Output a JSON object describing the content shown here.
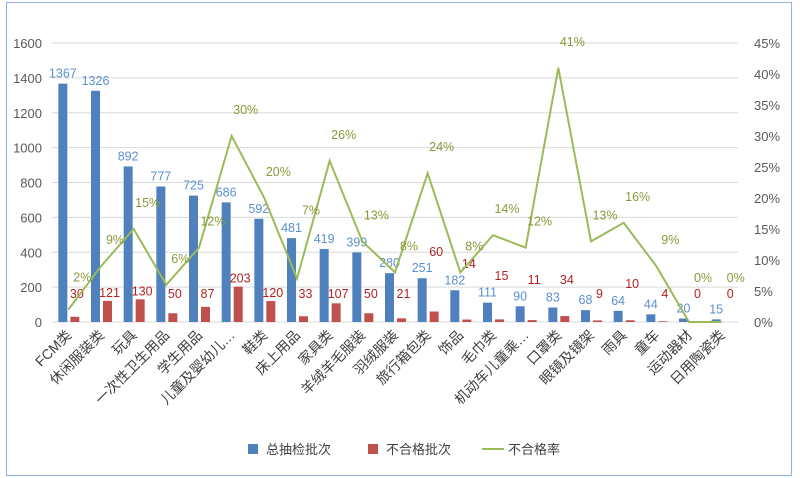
{
  "chart_data": {
    "type": "bar",
    "title": "",
    "categories": [
      "FCM类",
      "休闲服装类",
      "玩具",
      "一次性卫生用品",
      "学生用品",
      "儿童及婴幼儿…",
      "鞋类",
      "床上用品",
      "家具类",
      "羊绒羊毛服装",
      "羽绒服装",
      "旅行箱包类",
      "饰品",
      "毛巾类",
      "机动车儿童乘…",
      "口罩类",
      "眼镜及镜架",
      "雨具",
      "童车",
      "运动器材",
      "日用陶瓷类"
    ],
    "series": [
      {
        "name": "总抽检批次",
        "type": "bar",
        "axis": "left",
        "color": "#4f81bd",
        "label_color": "#5b8fd0",
        "values": [
          1367,
          1326,
          892,
          777,
          725,
          686,
          592,
          481,
          419,
          399,
          280,
          251,
          182,
          111,
          90,
          83,
          68,
          64,
          44,
          20,
          15
        ]
      },
      {
        "name": "不合格批次",
        "type": "bar",
        "axis": "left",
        "color": "#c0504d",
        "label_color": "#b22222",
        "values": [
          30,
          121,
          130,
          50,
          87,
          203,
          120,
          33,
          107,
          50,
          21,
          60,
          14,
          15,
          11,
          34,
          9,
          10,
          4,
          0,
          0
        ]
      },
      {
        "name": "不合格率",
        "type": "line",
        "axis": "right",
        "color": "#9bbb59",
        "label_color": "#8a9a3a",
        "values": [
          2,
          9,
          15,
          6,
          12,
          30,
          20,
          7,
          26,
          13,
          8,
          24,
          8,
          14,
          12,
          41,
          13,
          16,
          9,
          0,
          0
        ]
      }
    ],
    "y_left": {
      "min": 0,
      "max": 1600,
      "ticks": [
        0,
        200,
        400,
        600,
        800,
        1000,
        1200,
        1400,
        1600
      ]
    },
    "y_right": {
      "min": 0,
      "max": 45,
      "ticks": [
        "0%",
        "5%",
        "10%",
        "15%",
        "20%",
        "25%",
        "30%",
        "35%",
        "40%",
        "45%"
      ]
    },
    "grid": true,
    "legend": "bottom"
  }
}
